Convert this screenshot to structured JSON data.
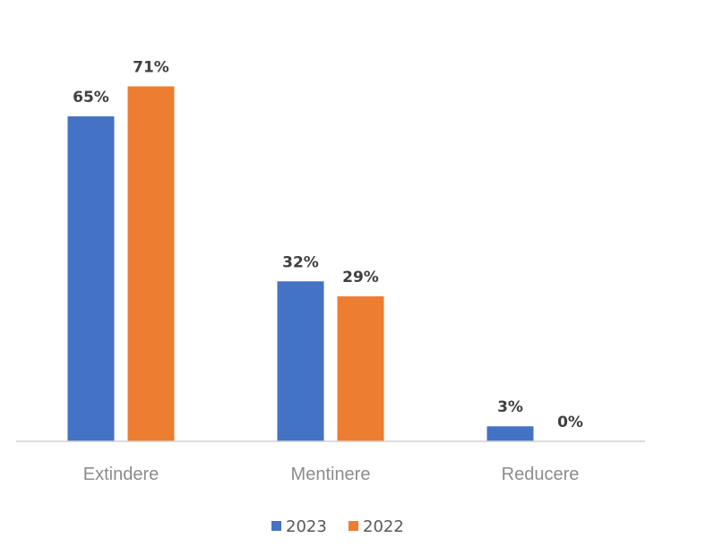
{
  "chart_data": {
    "type": "bar",
    "title": "",
    "xlabel": "",
    "ylabel": "",
    "ylim": [
      0,
      80
    ],
    "grid": false,
    "categories": [
      "Extindere",
      "Mentinere",
      "Reducere"
    ],
    "series": [
      {
        "name": "2023",
        "color": "#4472C4",
        "values": [
          65,
          32,
          3
        ],
        "labels": [
          "65%",
          "32%",
          "3%"
        ]
      },
      {
        "name": "2022",
        "color": "#ED7D31",
        "values": [
          71,
          29,
          0
        ],
        "labels": [
          "71%",
          "29%",
          "0%"
        ]
      }
    ],
    "legend_position": "bottom"
  }
}
